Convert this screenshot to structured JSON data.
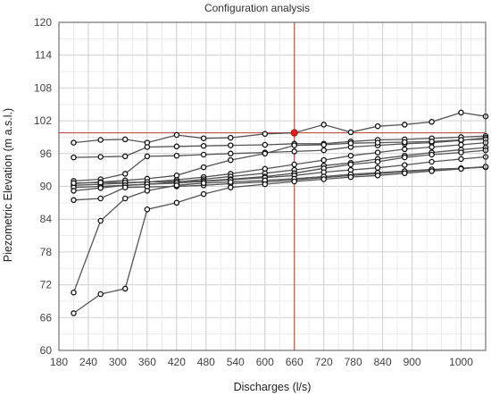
{
  "chart_data": {
    "type": "line",
    "title": "Configuration analysis",
    "xlabel": "Discharges (l/s)",
    "ylabel": "Piezometric Elevation (m a.s.l.)",
    "xlim": [
      180,
      1050
    ],
    "ylim": [
      60,
      120
    ],
    "xticks": [
      180,
      240,
      300,
      360,
      420,
      480,
      540,
      600,
      660,
      720,
      780,
      840,
      900,
      1000
    ],
    "yticks": [
      60,
      66,
      72,
      78,
      84,
      90,
      96,
      102,
      108,
      114,
      120
    ],
    "grid": true,
    "legend": "none",
    "reference_lines": {
      "x": 660,
      "y": 99.8,
      "color": "#c0504d"
    },
    "highlight_point": {
      "x": 660,
      "y": 99.8,
      "color": "#e02020"
    },
    "series_color": "#555555",
    "series": [
      {
        "x": [
          210,
          265,
          315,
          360,
          420,
          475,
          530,
          600,
          660,
          720,
          775,
          830,
          885,
          940,
          1000,
          1050
        ],
        "values": [
          98.0,
          98.5,
          98.6,
          98.0,
          99.4,
          98.8,
          98.9,
          99.6,
          99.8,
          101.3,
          99.9,
          101.0,
          101.3,
          101.8,
          103.5,
          102.8
        ]
      },
      {
        "x": [
          210,
          265,
          315,
          360,
          420,
          475,
          530,
          600,
          660,
          720,
          775,
          830,
          885,
          940,
          1000,
          1050
        ],
        "values": [
          95.3,
          95.4,
          95.5,
          97.2,
          97.3,
          97.4,
          97.5,
          97.6,
          97.8,
          97.8,
          98.2,
          98.5,
          98.6,
          98.8,
          99.0,
          99.2
        ]
      },
      {
        "x": [
          210,
          265,
          315,
          360,
          420,
          475,
          530,
          600,
          660,
          720,
          775,
          830,
          885,
          940,
          1000,
          1050
        ],
        "values": [
          91.0,
          91.3,
          92.3,
          95.5,
          95.6,
          95.8,
          96.0,
          96.2,
          96.4,
          96.6,
          97.2,
          97.5,
          97.8,
          98.0,
          98.4,
          98.9
        ]
      },
      {
        "x": [
          210,
          265,
          315,
          360,
          420,
          475,
          530,
          600,
          660,
          720,
          775,
          830,
          885,
          940,
          1000,
          1050
        ],
        "values": [
          90.5,
          90.8,
          91.1,
          91.4,
          92.0,
          93.5,
          94.8,
          96.0,
          97.5,
          97.6,
          97.9,
          98.0,
          98.1,
          98.2,
          98.5,
          98.6
        ]
      },
      {
        "x": [
          210,
          265,
          315,
          360,
          420,
          475,
          530,
          600,
          660,
          720,
          775,
          830,
          885,
          940,
          1000,
          1050
        ],
        "values": [
          90.2,
          90.4,
          90.6,
          90.8,
          91.2,
          91.7,
          92.3,
          93.2,
          94.0,
          94.8,
          95.6,
          96.2,
          96.8,
          97.2,
          97.6,
          98.0
        ]
      },
      {
        "x": [
          210,
          265,
          315,
          360,
          420,
          475,
          530,
          600,
          660,
          720,
          775,
          830,
          885,
          940,
          1000,
          1050
        ],
        "values": [
          89.8,
          90.0,
          90.2,
          90.4,
          90.8,
          91.3,
          91.8,
          92.4,
          93.0,
          93.8,
          94.3,
          95.0,
          95.6,
          96.2,
          96.7,
          97.1
        ]
      },
      {
        "x": [
          210,
          265,
          315,
          360,
          420,
          475,
          530,
          600,
          660,
          720,
          775,
          830,
          885,
          940,
          1000,
          1050
        ],
        "values": [
          90.6,
          90.7,
          90.7,
          90.8,
          90.9,
          91.0,
          91.3,
          91.8,
          92.4,
          93.3,
          94.0,
          94.5,
          95.3,
          95.8,
          96.2,
          96.6
        ]
      },
      {
        "x": [
          210,
          265,
          315,
          360,
          420,
          475,
          530,
          600,
          660,
          720,
          775,
          830,
          885,
          940,
          1000,
          1050
        ],
        "values": [
          89.2,
          89.7,
          90.2,
          90.4,
          90.6,
          90.9,
          91.2,
          91.6,
          92.0,
          92.6,
          93.0,
          93.4,
          93.9,
          94.5,
          95.0,
          95.4
        ]
      },
      {
        "x": [
          210,
          265,
          315,
          360,
          420,
          475,
          530,
          600,
          660,
          720,
          775,
          830,
          885,
          940,
          1000,
          1050
        ],
        "values": [
          87.5,
          87.8,
          89.8,
          89.9,
          90.0,
          90.2,
          90.5,
          90.8,
          91.2,
          91.6,
          92.0,
          92.3,
          92.7,
          93.0,
          93.3,
          93.6
        ]
      },
      {
        "x": [
          210,
          265,
          315,
          360,
          420,
          475,
          530,
          600,
          660,
          720,
          775,
          830,
          885,
          940,
          1000,
          1050
        ],
        "values": [
          70.6,
          83.7,
          87.8,
          89.2,
          90.2,
          90.6,
          90.8,
          91.1,
          91.4,
          91.8,
          92.2,
          92.5,
          92.8,
          93.1,
          93.3,
          93.5
        ]
      },
      {
        "x": [
          210,
          265,
          315,
          360,
          420,
          475,
          530,
          600,
          660,
          720,
          775,
          830,
          885,
          940,
          1000,
          1050
        ],
        "values": [
          66.8,
          70.3,
          71.3,
          85.8,
          87.0,
          88.6,
          89.8,
          90.4,
          90.9,
          91.3,
          91.7,
          92.0,
          92.4,
          92.8,
          93.2,
          93.6
        ]
      }
    ]
  }
}
